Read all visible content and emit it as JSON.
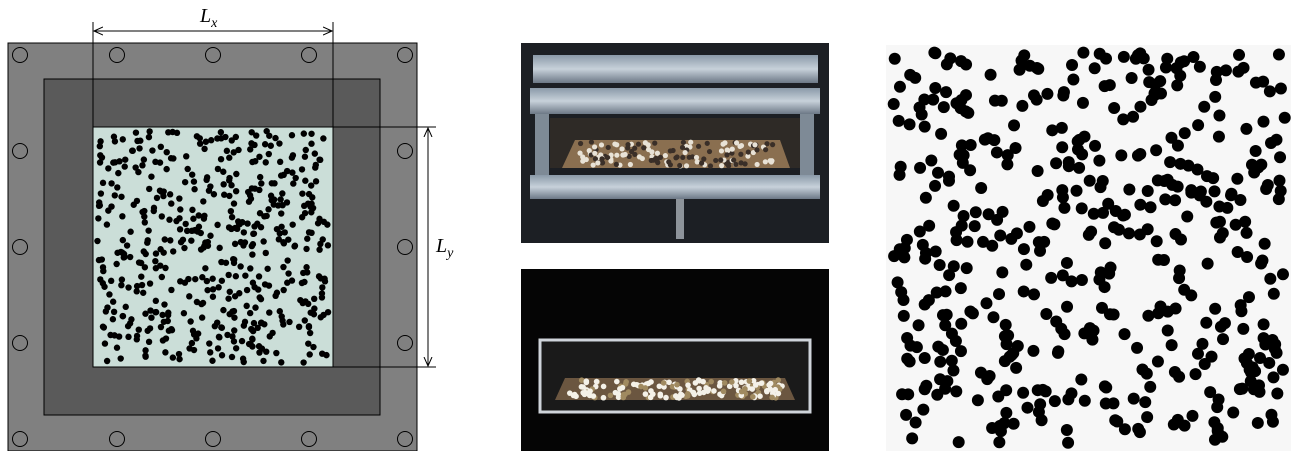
{
  "labels": {
    "lx": {
      "main": "L",
      "sub": "x"
    },
    "ly": {
      "main": "L",
      "sub": "y"
    }
  }
}
